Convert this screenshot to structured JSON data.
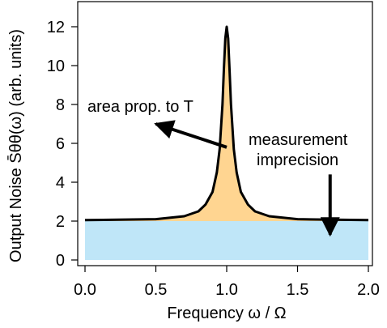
{
  "chart_data": {
    "type": "area",
    "xlabel": "Frequency  ω / Ω",
    "ylabel": "Output Noise S̄θθ(ω) (arb. units)",
    "xlim": [
      0,
      2
    ],
    "ylim": [
      0,
      12.5
    ],
    "xticks": [
      0,
      0.5,
      1,
      1.5,
      2
    ],
    "xtick_labels": [
      "0.0",
      "0.5",
      "1.0",
      "1.5",
      "2.0"
    ],
    "yticks": [
      0,
      2,
      4,
      6,
      8,
      10,
      12
    ],
    "ytick_labels": [
      "0",
      "2",
      "4",
      "6",
      "8",
      "10",
      "12"
    ],
    "grid": false,
    "series": [
      {
        "role": "total-noise-curve",
        "x": [
          0.0,
          0.5,
          0.7,
          0.8,
          0.85,
          0.9,
          0.93,
          0.95,
          0.97,
          0.98,
          0.99,
          1.0,
          1.01,
          1.02,
          1.03,
          1.05,
          1.07,
          1.1,
          1.15,
          1.2,
          1.3,
          1.5,
          1.75,
          2.0
        ],
        "y": [
          2.05,
          2.1,
          2.25,
          2.5,
          2.85,
          3.5,
          4.5,
          5.7,
          8.0,
          9.8,
          11.4,
          12.0,
          11.4,
          9.8,
          8.0,
          5.7,
          4.5,
          3.5,
          2.85,
          2.5,
          2.25,
          2.1,
          2.07,
          2.05
        ],
        "fill_color": "#ffd591",
        "line_color": "#000000"
      },
      {
        "role": "imprecision-floor",
        "x": [
          0.0,
          2.0
        ],
        "y": [
          2.0,
          2.0
        ],
        "fill_color": "#bfe6f8"
      }
    ],
    "annotations": [
      {
        "text": "area prop. to T",
        "arrow_from": [
          1.0,
          5.8
        ],
        "arrow_to": [
          0.5,
          7.0
        ]
      },
      {
        "text": "measurement",
        "text2": "imprecision",
        "arrow_from": [
          1.73,
          4.4
        ],
        "arrow_to": [
          1.73,
          1.3
        ]
      }
    ]
  }
}
